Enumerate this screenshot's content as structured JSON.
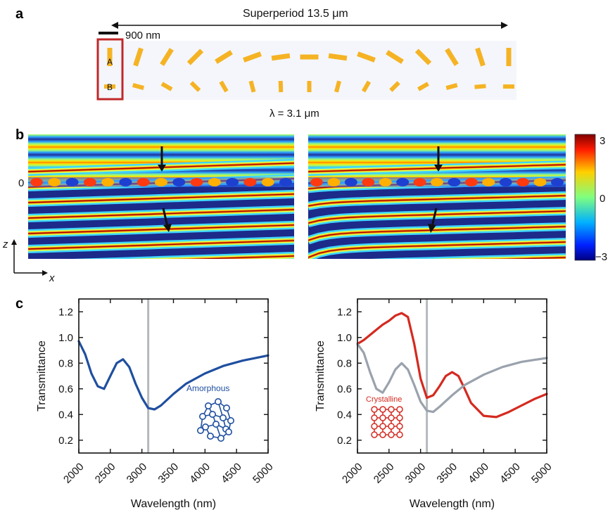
{
  "panel_a": {
    "label": "a",
    "superperiod_label": "Superperiod 13.5 μm",
    "scale_label": "900 nm",
    "antenna_a_label": "A",
    "antenna_b_label": "B",
    "antenna_color": "#f5b324",
    "highlight_color": "#c0282a",
    "top_row_angles_deg": [
      90,
      72,
      58,
      45,
      32,
      20,
      8,
      0,
      -8,
      -20,
      -32,
      -45,
      -58,
      -72,
      -90
    ],
    "bottom_row_angles_deg": [
      0,
      -15,
      -30,
      -45,
      -60,
      -75,
      -88,
      90,
      75,
      60,
      45,
      30,
      15,
      5,
      0
    ]
  },
  "panel_b": {
    "label": "b",
    "wavelength_label": "λ = 3.1 μm",
    "zero_label": "0",
    "z_axis": "z",
    "x_axis": "x",
    "colorbar_ticks": [
      "3",
      "0",
      "−3"
    ],
    "colormap": "jet"
  },
  "panel_c": {
    "label": "c",
    "chart_data": [
      {
        "type": "line",
        "xlabel": "Wavelength (nm)",
        "ylabel": "Transmittance",
        "xlim": [
          2000,
          5000
        ],
        "ylim": [
          0.1,
          1.3
        ],
        "xticks": [
          2000,
          2500,
          3000,
          3500,
          4000,
          4500,
          5000
        ],
        "yticks": [
          0.2,
          0.4,
          0.6,
          0.8,
          1.0,
          1.2
        ],
        "ytick_labels": [
          "0.2",
          "0.4",
          "0.6",
          "0.8",
          "1.0",
          "1.2"
        ],
        "vline_x": 3100,
        "annotation": "Amorphous",
        "series": [
          {
            "color": "#1f4fa0",
            "x": [
              2000,
              2100,
              2200,
              2300,
              2400,
              2500,
              2600,
              2700,
              2800,
              2900,
              3000,
              3100,
              3200,
              3300,
              3500,
              3700,
              4000,
              4300,
              4600,
              5000
            ],
            "y": [
              0.97,
              0.87,
              0.72,
              0.62,
              0.6,
              0.7,
              0.8,
              0.83,
              0.77,
              0.64,
              0.53,
              0.45,
              0.44,
              0.47,
              0.56,
              0.64,
              0.72,
              0.78,
              0.82,
              0.86
            ]
          }
        ]
      },
      {
        "type": "line",
        "xlabel": "Wavelength (nm)",
        "ylabel": "Transmittance",
        "xlim": [
          2000,
          5000
        ],
        "ylim": [
          0.1,
          1.3
        ],
        "xticks": [
          2000,
          2500,
          3000,
          3500,
          4000,
          4500,
          5000
        ],
        "yticks": [
          0.2,
          0.4,
          0.6,
          0.8,
          1.0,
          1.2
        ],
        "ytick_labels": [
          "0.2",
          "0.4",
          "0.6",
          "0.8",
          "1.0",
          "1.2"
        ],
        "vline_x": 3100,
        "annotation": "Crystalline",
        "series": [
          {
            "color": "#d42a20",
            "x": [
              2000,
              2100,
              2200,
              2300,
              2400,
              2500,
              2600,
              2700,
              2800,
              2900,
              3000,
              3100,
              3200,
              3300,
              3400,
              3500,
              3600,
              3700,
              3800,
              4000,
              4200,
              4400,
              4600,
              4800,
              5000
            ],
            "y": [
              0.95,
              0.98,
              1.02,
              1.06,
              1.1,
              1.13,
              1.17,
              1.19,
              1.16,
              0.95,
              0.68,
              0.53,
              0.55,
              0.62,
              0.7,
              0.73,
              0.7,
              0.6,
              0.49,
              0.39,
              0.38,
              0.42,
              0.47,
              0.52,
              0.56
            ]
          },
          {
            "color": "#9aa2ad",
            "x": [
              2000,
              2100,
              2200,
              2300,
              2400,
              2500,
              2600,
              2700,
              2800,
              2900,
              3000,
              3100,
              3200,
              3300,
              3500,
              3700,
              4000,
              4300,
              4600,
              5000
            ],
            "y": [
              0.95,
              0.88,
              0.73,
              0.6,
              0.57,
              0.65,
              0.75,
              0.8,
              0.75,
              0.63,
              0.5,
              0.43,
              0.42,
              0.46,
              0.55,
              0.63,
              0.71,
              0.77,
              0.81,
              0.84
            ]
          }
        ]
      }
    ]
  }
}
